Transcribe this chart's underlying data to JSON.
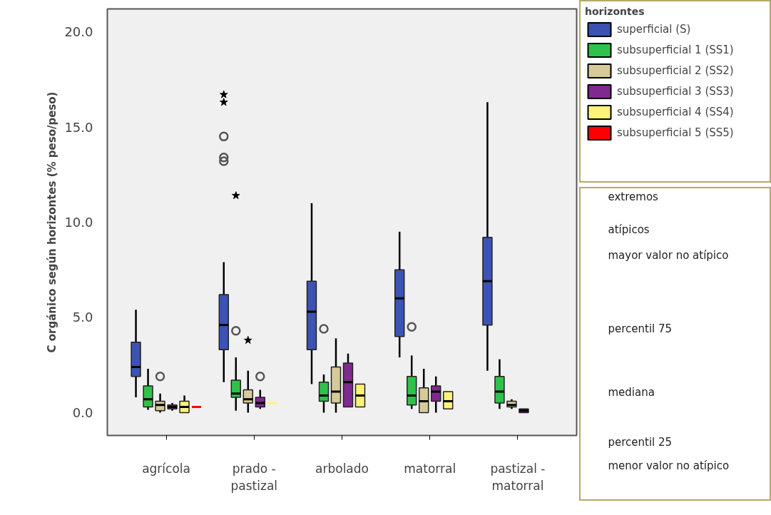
{
  "chart_data": {
    "type": "box",
    "ylabel": "C orgánico según horizontes (% peso/peso)",
    "legend_title": "horizontes",
    "categories": [
      "agrícola",
      "prado - pastizal",
      "arbolado",
      "matorral",
      "pastizal - matorral"
    ],
    "ylim": [
      -1.2,
      21.2
    ],
    "yticks": [
      {
        "value": 0,
        "label": "0.0"
      },
      {
        "value": 5,
        "label": "5.0"
      },
      {
        "value": 10,
        "label": "10.0"
      },
      {
        "value": 15,
        "label": "15.0"
      },
      {
        "value": 20,
        "label": "20.0"
      }
    ],
    "grid": false,
    "legend": "right",
    "series": [
      {
        "name": "superficial (S)",
        "color": "#3c53b3",
        "boxes": [
          {
            "low": 0.8,
            "q1": 1.9,
            "median": 2.4,
            "q3": 3.7,
            "high": 5.4
          },
          {
            "low": 1.6,
            "q1": 3.3,
            "median": 4.6,
            "q3": 6.2,
            "high": 7.9,
            "outliers": [
              16.7,
              16.3,
              14.5,
              13.4,
              13.2
            ]
          },
          {
            "low": 1.5,
            "q1": 3.3,
            "median": 5.3,
            "q3": 6.9,
            "high": 11.0
          },
          {
            "low": 2.9,
            "q1": 4.0,
            "median": 6.0,
            "q3": 7.5,
            "high": 9.5
          },
          {
            "low": 2.2,
            "q1": 4.6,
            "median": 6.9,
            "q3": 9.2,
            "high": 16.3
          }
        ]
      },
      {
        "name": "subsuperficial 1 (SS1)",
        "color": "#2fc24a",
        "boxes": [
          {
            "low": 0.15,
            "q1": 0.3,
            "median": 0.7,
            "q3": 1.4,
            "high": 2.3
          },
          {
            "low": 0.1,
            "q1": 0.8,
            "median": 1.0,
            "q3": 1.7,
            "high": 2.9,
            "outliers": [
              11.4,
              4.3
            ]
          },
          {
            "low": 0.0,
            "q1": 0.6,
            "median": 0.9,
            "q3": 1.6,
            "high": 2.0,
            "outliers": [
              4.4
            ]
          },
          {
            "low": 0.2,
            "q1": 0.4,
            "median": 0.9,
            "q3": 1.9,
            "high": 3.0,
            "outliers": [
              4.5
            ]
          },
          {
            "low": 0.2,
            "q1": 0.5,
            "median": 1.1,
            "q3": 1.9,
            "high": 2.8
          }
        ]
      },
      {
        "name": "subsuperficial 2 (SS2)",
        "color": "#d6c99a",
        "boxes": [
          {
            "low": 0.0,
            "q1": 0.1,
            "median": 0.4,
            "q3": 0.6,
            "high": 1.0,
            "outliers": [
              1.9
            ]
          },
          {
            "low": 0.0,
            "q1": 0.5,
            "median": 0.7,
            "q3": 1.2,
            "high": 2.2,
            "outliers": [
              3.8
            ]
          },
          {
            "low": 0.0,
            "q1": 0.5,
            "median": 1.1,
            "q3": 2.4,
            "high": 3.9
          },
          {
            "low": 0.0,
            "q1": 0.0,
            "median": 0.6,
            "q3": 1.3,
            "high": 2.3
          },
          {
            "low": 0.2,
            "q1": 0.3,
            "median": 0.4,
            "q3": 0.6,
            "high": 0.7
          }
        ]
      },
      {
        "name": "subsuperficial 3 (SS3)",
        "color": "#7f2a8e",
        "boxes": [
          {
            "low": 0.1,
            "q1": 0.2,
            "median": 0.3,
            "q3": 0.4,
            "high": 0.5
          },
          {
            "low": 0.2,
            "q1": 0.3,
            "median": 0.5,
            "q3": 0.8,
            "high": 1.2,
            "outliers": [
              1.9
            ]
          },
          {
            "low": 0.3,
            "q1": 0.3,
            "median": 1.6,
            "q3": 2.6,
            "high": 3.1
          },
          {
            "low": 0.0,
            "q1": 0.6,
            "median": 1.1,
            "q3": 1.4,
            "high": 1.9
          },
          {
            "low": 0.0,
            "q1": 0.0,
            "median": 0.1,
            "q3": 0.2,
            "high": 0.2
          }
        ]
      },
      {
        "name": "subsuperficial 4 (SS4)",
        "color": "#fff27a",
        "boxes": [
          {
            "low": 0.0,
            "q1": 0.0,
            "median": 0.3,
            "q3": 0.6,
            "high": 0.9
          },
          {
            "low": 0.5,
            "q1": 0.5,
            "median": 0.5,
            "q3": 0.5,
            "high": 0.5
          },
          {
            "low": 0.3,
            "q1": 0.3,
            "median": 0.9,
            "q3": 1.5,
            "high": 1.5
          },
          {
            "low": 0.2,
            "q1": 0.2,
            "median": 0.6,
            "q3": 1.1,
            "high": 1.1
          },
          null
        ]
      },
      {
        "name": "subsuperficial 5 (SS5)",
        "color": "#ff0000",
        "boxes": [
          {
            "low": 0.3,
            "q1": 0.3,
            "median": 0.3,
            "q3": 0.3,
            "high": 0.3
          },
          null,
          null,
          null,
          null
        ]
      }
    ],
    "annotations": [
      "extremos",
      "atípicos",
      "mayor valor no atípico",
      "percentil 75",
      "mediana",
      "percentil 25",
      "menor valor no atípico"
    ]
  }
}
